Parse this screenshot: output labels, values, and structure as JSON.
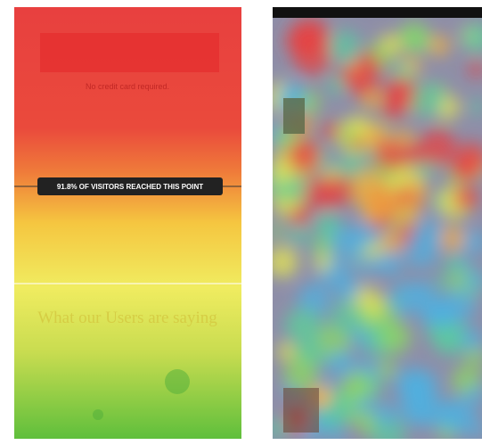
{
  "left_panel": {
    "scroll_label": "91.8% OF VISITORS REACHED THIS POINT",
    "note": "No credit card required.",
    "section_heading": "What our Users are saying"
  }
}
